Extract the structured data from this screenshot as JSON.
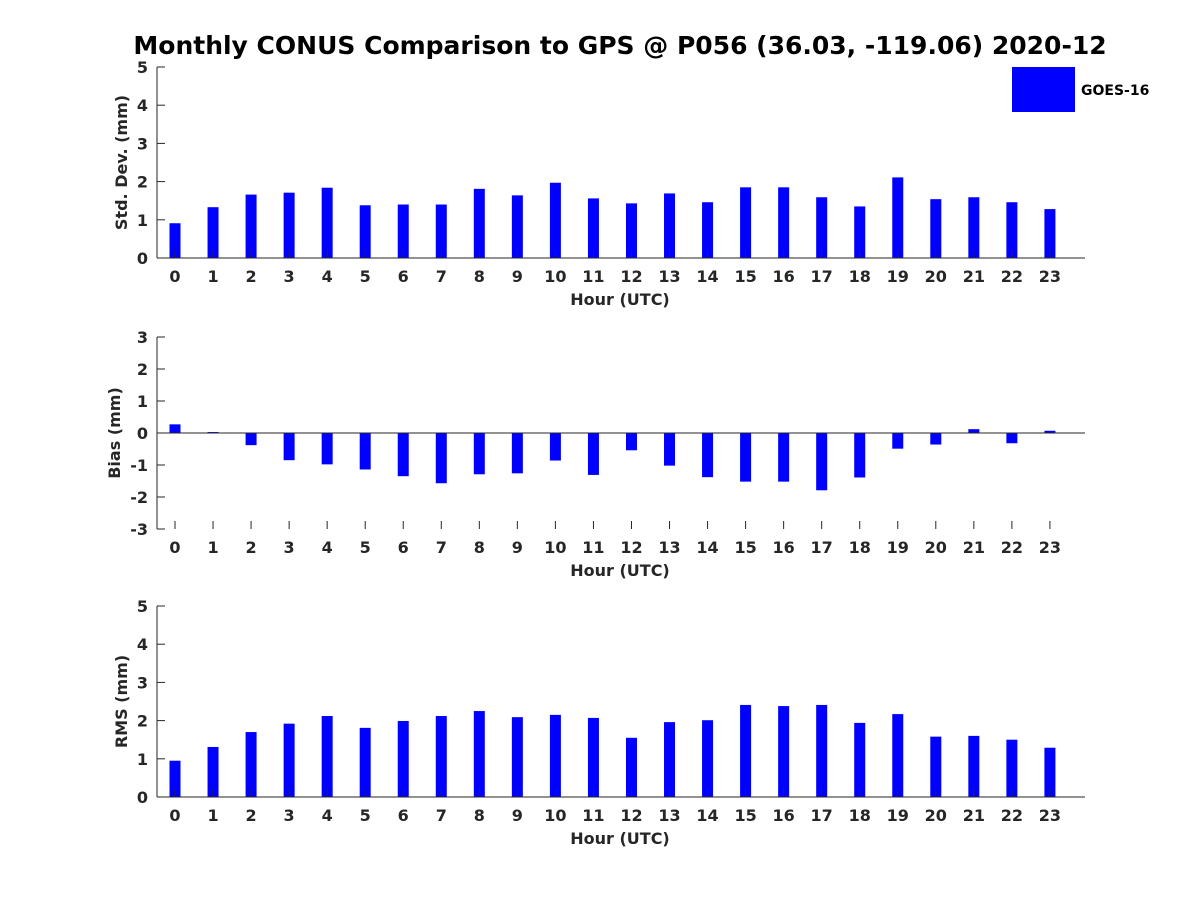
{
  "title": "Monthly CONUS Comparison to GPS @ P056 (36.03, -119.06) 2020-12",
  "legend": {
    "label": "GOES-16",
    "color": "#0000ff"
  },
  "chart_data": [
    {
      "type": "bar",
      "title": "Monthly CONUS Comparison to GPS @ P056 (36.03, -119.06) 2020-12",
      "series_name": "GOES-16",
      "xlabel": "Hour (UTC)",
      "ylabel": "Std. Dev. (mm)",
      "ylim": [
        0,
        5
      ],
      "yticks": [
        0,
        1,
        2,
        3,
        4,
        5
      ],
      "categories": [
        "0",
        "1",
        "2",
        "3",
        "4",
        "5",
        "6",
        "7",
        "8",
        "9",
        "10",
        "11",
        "12",
        "13",
        "14",
        "15",
        "16",
        "17",
        "18",
        "19",
        "20",
        "21",
        "22",
        "23"
      ],
      "values": [
        0.91,
        1.33,
        1.66,
        1.71,
        1.84,
        1.38,
        1.4,
        1.4,
        1.81,
        1.64,
        1.97,
        1.56,
        1.43,
        1.69,
        1.46,
        1.85,
        1.85,
        1.59,
        1.35,
        2.11,
        1.54,
        1.59,
        1.46,
        1.28
      ],
      "color": "#0000ff"
    },
    {
      "type": "bar",
      "series_name": "GOES-16",
      "xlabel": "Hour (UTC)",
      "ylabel": "Bias (mm)",
      "ylim": [
        -3,
        3
      ],
      "yticks": [
        -3,
        -2,
        -1,
        0,
        1,
        2,
        3
      ],
      "categories": [
        "0",
        "1",
        "2",
        "3",
        "4",
        "5",
        "6",
        "7",
        "8",
        "9",
        "10",
        "11",
        "12",
        "13",
        "14",
        "15",
        "16",
        "17",
        "18",
        "19",
        "20",
        "21",
        "22",
        "23"
      ],
      "values": [
        0.27,
        0.03,
        -0.38,
        -0.85,
        -0.98,
        -1.14,
        -1.35,
        -1.57,
        -1.29,
        -1.26,
        -0.86,
        -1.31,
        -0.54,
        -1.02,
        -1.38,
        -1.52,
        -1.52,
        -1.79,
        -1.39,
        -0.49,
        -0.36,
        0.12,
        -0.32,
        0.07
      ],
      "color": "#0000ff"
    },
    {
      "type": "bar",
      "series_name": "GOES-16",
      "xlabel": "Hour (UTC)",
      "ylabel": "RMS (mm)",
      "ylim": [
        0,
        5
      ],
      "yticks": [
        0,
        1,
        2,
        3,
        4,
        5
      ],
      "categories": [
        "0",
        "1",
        "2",
        "3",
        "4",
        "5",
        "6",
        "7",
        "8",
        "9",
        "10",
        "11",
        "12",
        "13",
        "14",
        "15",
        "16",
        "17",
        "18",
        "19",
        "20",
        "21",
        "22",
        "23"
      ],
      "values": [
        0.95,
        1.31,
        1.7,
        1.92,
        2.12,
        1.81,
        1.99,
        2.12,
        2.25,
        2.09,
        2.15,
        2.07,
        1.55,
        1.96,
        2.01,
        2.41,
        2.38,
        2.41,
        1.94,
        2.17,
        1.58,
        1.6,
        1.5,
        1.29
      ],
      "color": "#0000ff"
    }
  ]
}
